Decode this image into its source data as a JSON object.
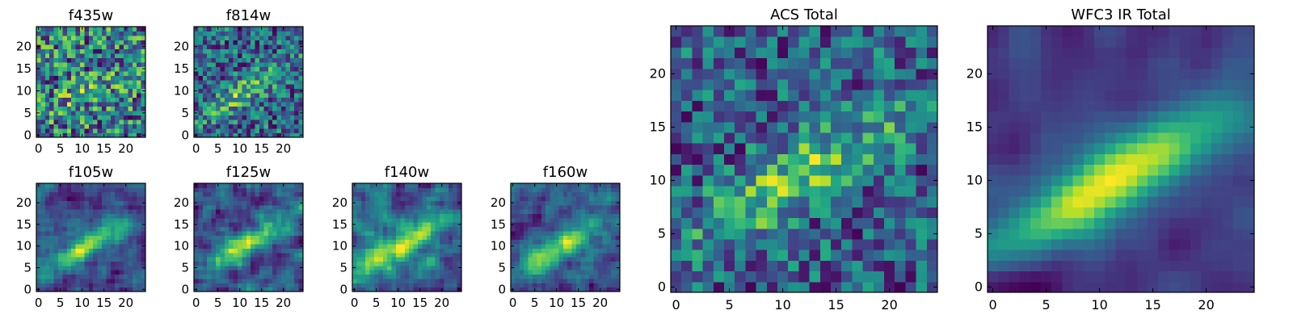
{
  "figure": {
    "background": "#ffffff",
    "colormap": "viridis"
  },
  "chart_data": [
    {
      "type": "heatmap",
      "title": "f435w",
      "grid_size": 25,
      "seed": 11,
      "signal": 0.15,
      "smooth": 0,
      "noise": 0.55,
      "xticks": [
        0,
        5,
        10,
        15,
        20
      ],
      "yticks": [
        0,
        5,
        10,
        15,
        20
      ],
      "xlim": [
        -0.5,
        24.5
      ],
      "ylim": [
        -0.5,
        24.5
      ]
    },
    {
      "type": "heatmap",
      "title": "f814w",
      "grid_size": 25,
      "seed": 23,
      "signal": 0.35,
      "smooth": 0,
      "noise": 0.45,
      "xticks": [
        0,
        5,
        10,
        15,
        20
      ],
      "yticks": [
        0,
        5,
        10,
        15,
        20
      ],
      "xlim": [
        -0.5,
        24.5
      ],
      "ylim": [
        -0.5,
        24.5
      ]
    },
    {
      "type": "heatmap",
      "title": "f105w",
      "grid_size": 25,
      "seed": 37,
      "signal": 0.6,
      "smooth": 1,
      "noise": 0.35,
      "xticks": [
        0,
        5,
        10,
        15,
        20
      ],
      "yticks": [
        0,
        5,
        10,
        15,
        20
      ],
      "xlim": [
        -0.5,
        24.5
      ],
      "ylim": [
        -0.5,
        24.5
      ]
    },
    {
      "type": "heatmap",
      "title": "f125w",
      "grid_size": 25,
      "seed": 41,
      "signal": 0.55,
      "smooth": 1,
      "noise": 0.4,
      "xticks": [
        0,
        5,
        10,
        15,
        20
      ],
      "yticks": [
        0,
        5,
        10,
        15,
        20
      ],
      "xlim": [
        -0.5,
        24.5
      ],
      "ylim": [
        -0.5,
        24.5
      ]
    },
    {
      "type": "heatmap",
      "title": "f140w",
      "grid_size": 25,
      "seed": 53,
      "signal": 0.5,
      "smooth": 1,
      "noise": 0.4,
      "xticks": [
        0,
        5,
        10,
        15,
        20
      ],
      "yticks": [
        0,
        5,
        10,
        15,
        20
      ],
      "xlim": [
        -0.5,
        24.5
      ],
      "ylim": [
        -0.5,
        24.5
      ]
    },
    {
      "type": "heatmap",
      "title": "f160w",
      "grid_size": 25,
      "seed": 67,
      "signal": 0.55,
      "smooth": 1,
      "noise": 0.38,
      "xticks": [
        0,
        5,
        10,
        15,
        20
      ],
      "yticks": [
        0,
        5,
        10,
        15,
        20
      ],
      "xlim": [
        -0.5,
        24.5
      ],
      "ylim": [
        -0.5,
        24.5
      ]
    },
    {
      "type": "heatmap",
      "title": "ACS Total",
      "grid_size": 25,
      "seed": 79,
      "signal": 0.45,
      "smooth": 0,
      "noise": 0.42,
      "xticks": [
        0,
        5,
        10,
        15,
        20
      ],
      "yticks": [
        0,
        5,
        10,
        15,
        20
      ],
      "xlim": [
        -0.5,
        24.5
      ],
      "ylim": [
        -0.5,
        24.5
      ]
    },
    {
      "type": "heatmap",
      "title": "WFC3 IR Total",
      "grid_size": 25,
      "seed": 97,
      "signal": 0.75,
      "smooth": 2,
      "noise": 0.22,
      "xticks": [
        0,
        5,
        10,
        15,
        20
      ],
      "yticks": [
        0,
        5,
        10,
        15,
        20
      ],
      "xlim": [
        -0.5,
        24.5
      ],
      "ylim": [
        -0.5,
        24.5
      ]
    }
  ]
}
